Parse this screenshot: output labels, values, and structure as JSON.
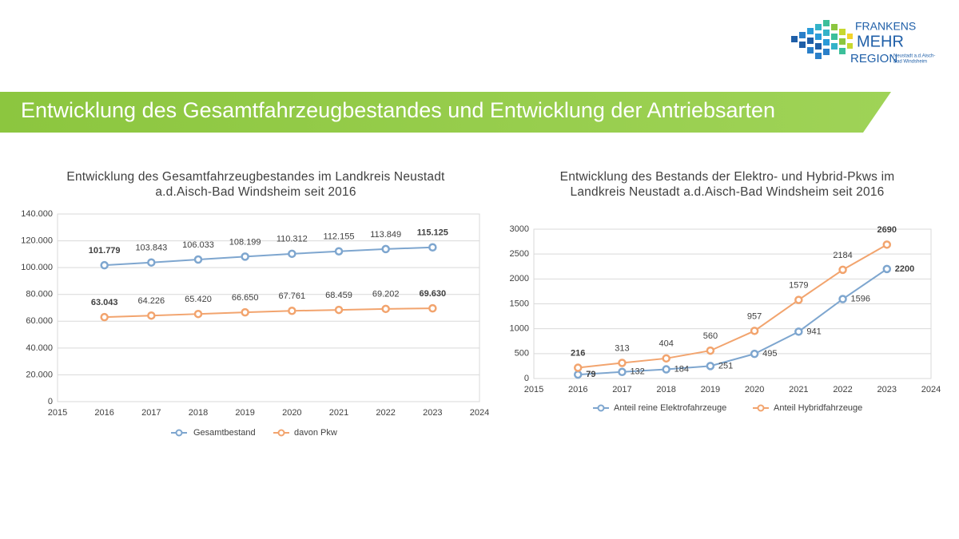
{
  "header": {
    "title": "Entwicklung des Gesamtfahrzeugbestandes  und Entwicklung der Antriebsarten",
    "logo": [
      "FRANKENS",
      "MEHR",
      "REGION",
      "Neustadt a.d.Aisch-",
      "Bad Windsheim"
    ]
  },
  "chart_data": [
    {
      "type": "line",
      "title": "Entwicklung des Gesamtfahrzeugbestandes im Landkreis Neustadt a.d.Aisch-Bad Windsheim seit 2016",
      "x": [
        2016,
        2017,
        2018,
        2019,
        2020,
        2021,
        2022,
        2023
      ],
      "xlim": [
        2015,
        2024
      ],
      "xticks": [
        2015,
        2016,
        2017,
        2018,
        2019,
        2020,
        2021,
        2022,
        2023,
        2024
      ],
      "ylim": [
        0,
        140000
      ],
      "yticks": [
        0,
        {
          "value": 20000,
          "label": "20.000"
        },
        {
          "value": 40000,
          "label": "40.000"
        },
        {
          "value": 60000,
          "label": "60.000"
        },
        {
          "value": 80000,
          "label": "80.000"
        },
        {
          "value": 100000,
          "label": "100.000"
        },
        {
          "value": 120000,
          "label": "120.000"
        },
        {
          "value": 140000,
          "label": "140.000"
        }
      ],
      "grid": true,
      "series": [
        {
          "name": "Gesamtbestand",
          "color": "#7ea6cf",
          "values": [
            101779,
            103843,
            106033,
            108199,
            110312,
            112155,
            113849,
            115125
          ],
          "value_labels": [
            "101.779",
            "103.843",
            "106.033",
            "108.199",
            "110.312",
            "112.155",
            "113.849",
            "115.125"
          ]
        },
        {
          "name": "davon Pkw",
          "color": "#f2a46e",
          "values": [
            63043,
            64226,
            65420,
            66650,
            67761,
            68459,
            69202,
            69630
          ],
          "value_labels": [
            "63.043",
            "64.226",
            "65.420",
            "66.650",
            "67.761",
            "68.459",
            "69.202",
            "69.630"
          ]
        }
      ]
    },
    {
      "type": "line",
      "title": "Entwicklung des Bestands der Elektro- und Hybrid-Pkws im Landkreis Neustadt a.d.Aisch-Bad Windsheim seit 2016",
      "x": [
        2016,
        2017,
        2018,
        2019,
        2020,
        2021,
        2022,
        2023
      ],
      "xlim": [
        2015,
        2024
      ],
      "xticks": [
        2015,
        2016,
        2017,
        2018,
        2019,
        2020,
        2021,
        2022,
        2023,
        2024
      ],
      "ylim": [
        0,
        3000
      ],
      "yticks": [
        0,
        500,
        1000,
        1500,
        2000,
        2500,
        3000
      ],
      "grid": true,
      "series": [
        {
          "name": "Anteil reine Elektrofahrzeuge",
          "color": "#7ea6cf",
          "values": [
            79,
            132,
            184,
            251,
            495,
            941,
            1596,
            2200
          ]
        },
        {
          "name": "Anteil Hybridfahrzeuge",
          "color": "#f2a46e",
          "values": [
            216,
            313,
            404,
            560,
            957,
            1579,
            2184,
            2690
          ]
        }
      ]
    }
  ]
}
